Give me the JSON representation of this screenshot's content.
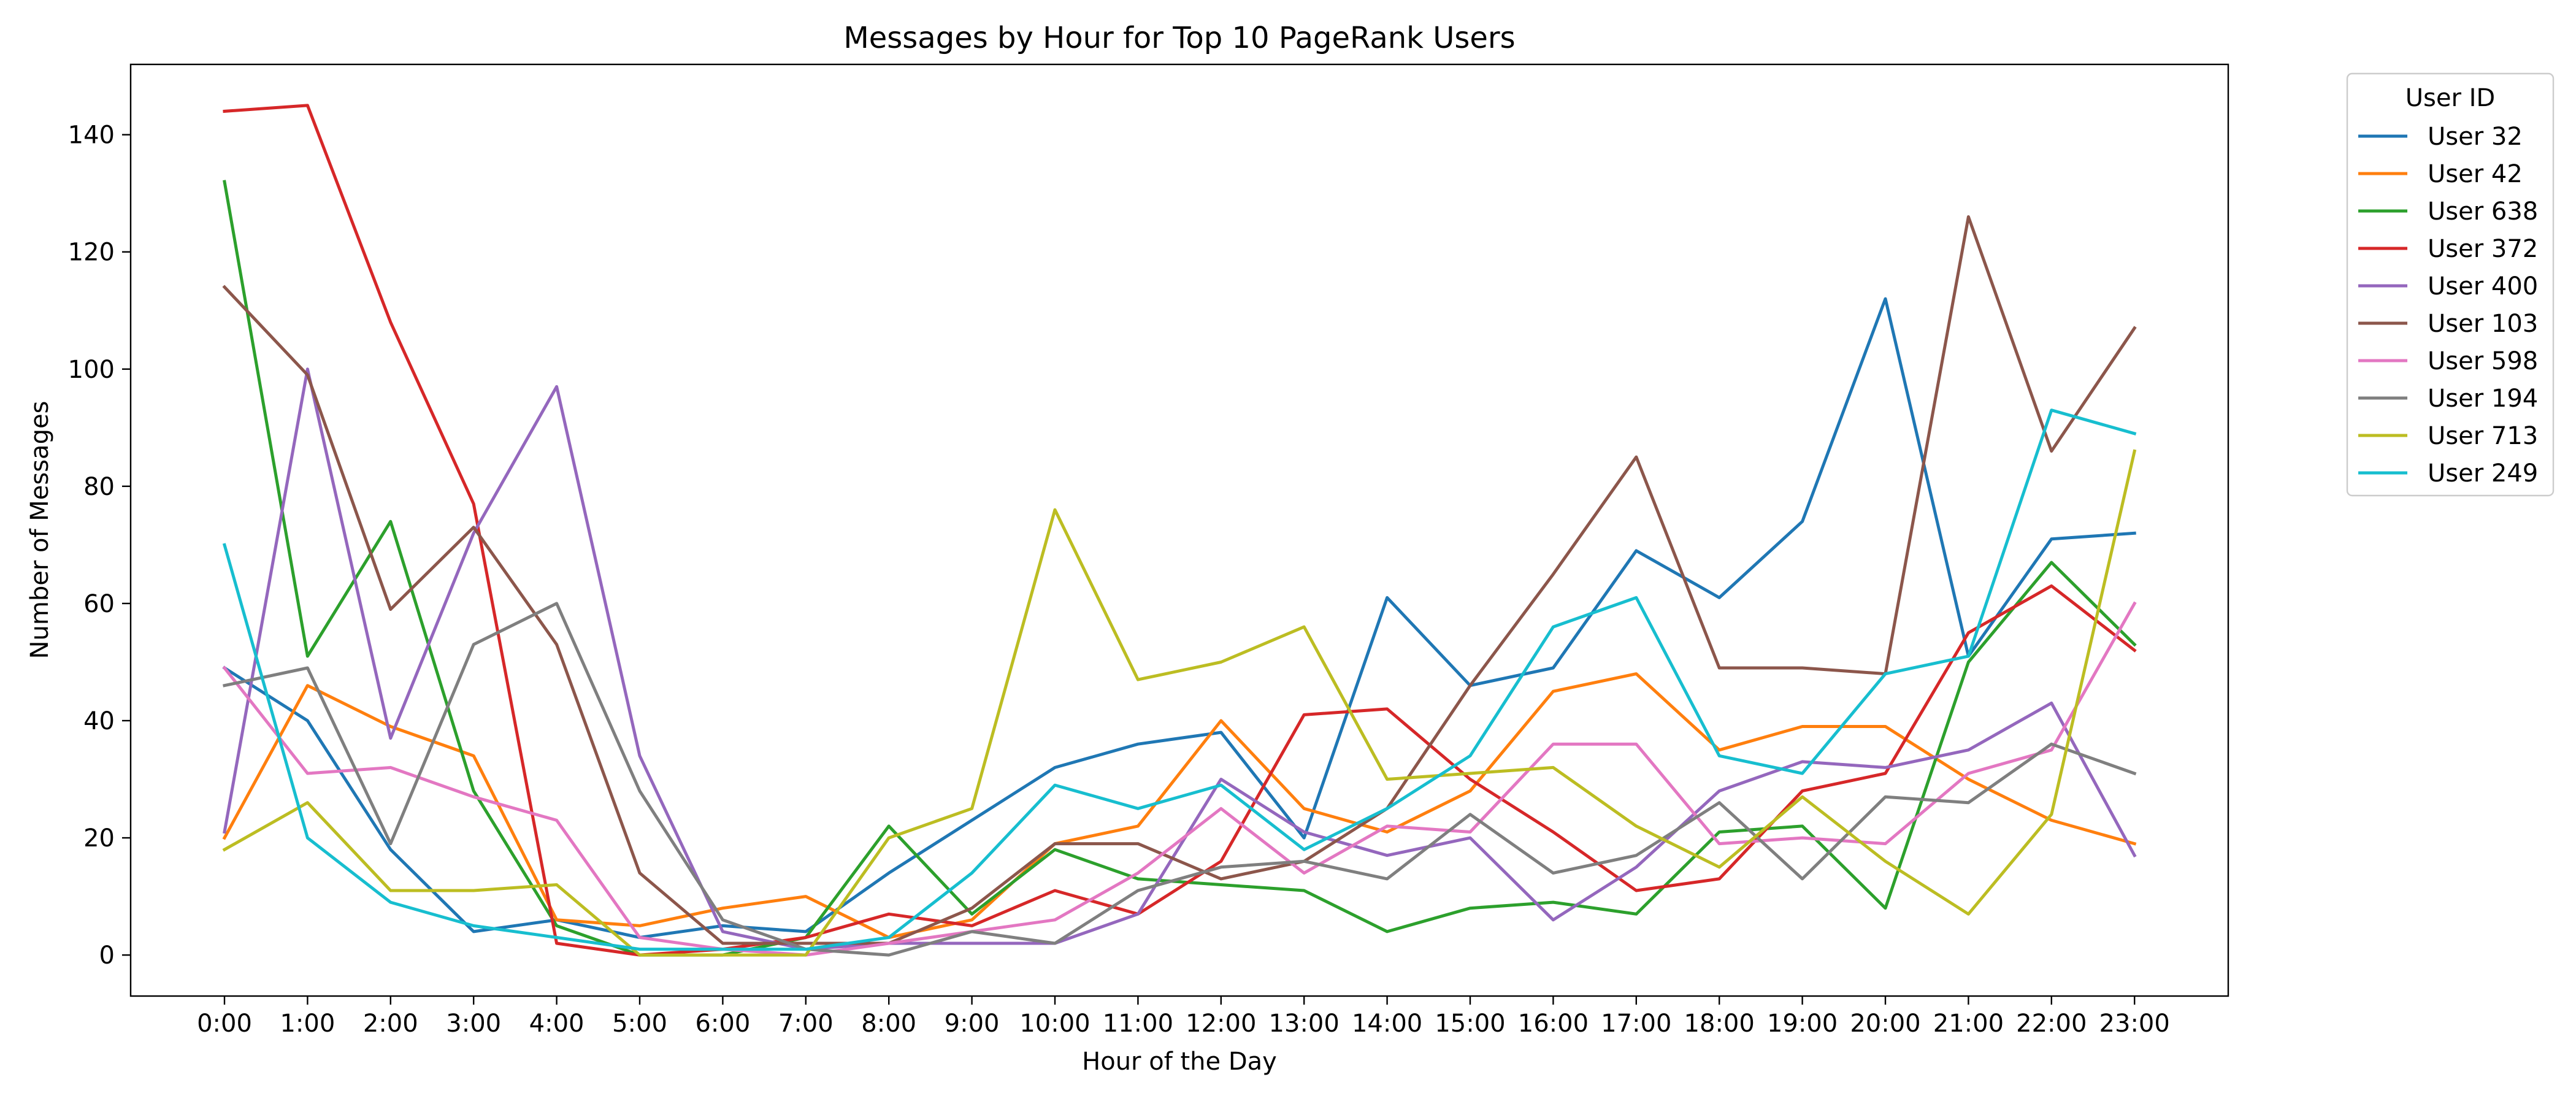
{
  "chart_data": {
    "type": "line",
    "title": "Messages by Hour for Top 10 PageRank Users",
    "xlabel": "Hour of the Day",
    "ylabel": "Number of Messages",
    "x": [
      "0:00",
      "1:00",
      "2:00",
      "3:00",
      "4:00",
      "5:00",
      "6:00",
      "7:00",
      "8:00",
      "9:00",
      "10:00",
      "11:00",
      "12:00",
      "13:00",
      "14:00",
      "15:00",
      "16:00",
      "17:00",
      "18:00",
      "19:00",
      "20:00",
      "21:00",
      "22:00",
      "23:00"
    ],
    "ylim": [
      -7,
      152
    ],
    "yticks": [
      0,
      20,
      40,
      60,
      80,
      100,
      120,
      140
    ],
    "grid": false,
    "legend": {
      "title": "User ID",
      "placement": "outside-top-right"
    },
    "series": [
      {
        "name": "User 32",
        "color": "#1f77b4",
        "values": [
          49,
          40,
          18,
          4,
          6,
          3,
          5,
          4,
          14,
          23,
          32,
          36,
          38,
          20,
          61,
          46,
          49,
          69,
          61,
          74,
          112,
          51,
          71,
          72
        ]
      },
      {
        "name": "User 42",
        "color": "#ff7f0e",
        "values": [
          20,
          46,
          39,
          34,
          6,
          5,
          8,
          10,
          3,
          6,
          19,
          22,
          40,
          25,
          21,
          28,
          45,
          48,
          35,
          39,
          39,
          30,
          23,
          19
        ]
      },
      {
        "name": "User 638",
        "color": "#2ca02c",
        "values": [
          132,
          51,
          74,
          28,
          5,
          0,
          0,
          3,
          22,
          7,
          18,
          13,
          12,
          11,
          4,
          8,
          9,
          7,
          21,
          22,
          8,
          50,
          67,
          53
        ]
      },
      {
        "name": "User 372",
        "color": "#d62728",
        "values": [
          144,
          145,
          108,
          77,
          2,
          0,
          1,
          3,
          7,
          5,
          11,
          7,
          16,
          41,
          42,
          30,
          21,
          11,
          13,
          28,
          31,
          55,
          63,
          52
        ]
      },
      {
        "name": "User 400",
        "color": "#9467bd",
        "values": [
          21,
          100,
          37,
          72,
          97,
          34,
          4,
          1,
          2,
          2,
          2,
          7,
          30,
          21,
          17,
          20,
          6,
          15,
          28,
          33,
          32,
          35,
          43,
          17
        ]
      },
      {
        "name": "User 103",
        "color": "#8c564b",
        "values": [
          114,
          99,
          59,
          73,
          53,
          14,
          2,
          2,
          2,
          8,
          19,
          19,
          13,
          16,
          25,
          46,
          65,
          85,
          49,
          49,
          48,
          126,
          86,
          107
        ]
      },
      {
        "name": "User 598",
        "color": "#e377c2",
        "values": [
          49,
          31,
          32,
          27,
          23,
          3,
          1,
          0,
          2,
          4,
          6,
          14,
          25,
          14,
          22,
          21,
          36,
          36,
          19,
          20,
          19,
          31,
          35,
          60
        ]
      },
      {
        "name": "User 194",
        "color": "#7f7f7f",
        "values": [
          46,
          49,
          19,
          53,
          60,
          28,
          6,
          1,
          0,
          4,
          2,
          11,
          15,
          16,
          13,
          24,
          14,
          17,
          26,
          13,
          27,
          26,
          36,
          31
        ]
      },
      {
        "name": "User 713",
        "color": "#bcbd22",
        "values": [
          18,
          26,
          11,
          11,
          12,
          0,
          0,
          0,
          20,
          25,
          76,
          47,
          50,
          56,
          30,
          31,
          32,
          22,
          15,
          27,
          16,
          7,
          24,
          86
        ]
      },
      {
        "name": "User 249",
        "color": "#17becf",
        "values": [
          70,
          20,
          9,
          5,
          3,
          1,
          1,
          1,
          3,
          14,
          29,
          25,
          29,
          18,
          25,
          34,
          56,
          61,
          34,
          31,
          48,
          51,
          93,
          89
        ]
      }
    ]
  }
}
